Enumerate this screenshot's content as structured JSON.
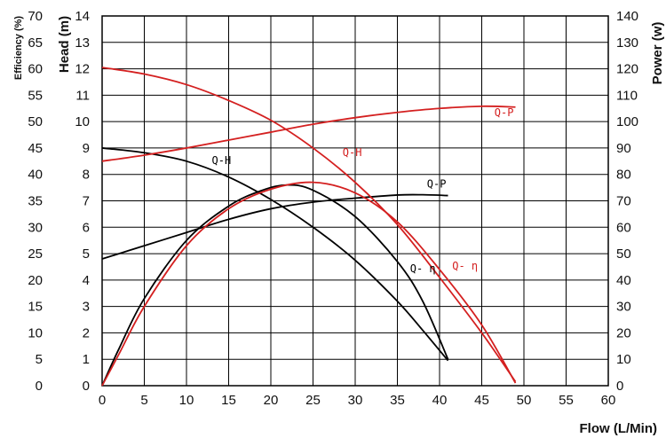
{
  "chart_data": {
    "type": "line",
    "grid": true,
    "x_axis": {
      "label": "Flow  (L/Min)",
      "ticks": [
        0,
        5,
        10,
        15,
        20,
        25,
        30,
        35,
        40,
        45,
        50,
        55,
        60
      ],
      "range": [
        0,
        60
      ]
    },
    "y_axes": {
      "efficiency": {
        "label": "Efficiency (%)",
        "ticks": [
          0,
          5,
          10,
          15,
          20,
          25,
          30,
          35,
          40,
          45,
          50,
          55,
          60,
          65,
          70
        ],
        "range": [
          0,
          70
        ]
      },
      "head": {
        "label": "Head (m)",
        "ticks": [
          0,
          1,
          2,
          3,
          4,
          5,
          6,
          7,
          8,
          9,
          10,
          11,
          12,
          13,
          14
        ],
        "range": [
          0,
          14
        ]
      },
      "power": {
        "label": "Power (w)",
        "ticks": [
          0,
          10,
          20,
          30,
          40,
          50,
          60,
          70,
          80,
          90,
          100,
          110,
          120,
          130,
          140
        ],
        "range": [
          0,
          140
        ]
      }
    },
    "colors": {
      "black": "#000000",
      "red": "#d42020",
      "grid": "#000000"
    },
    "series": [
      {
        "name": "Q-H",
        "color": "black",
        "axis": "head",
        "points": [
          [
            0,
            9.0
          ],
          [
            5,
            8.82
          ],
          [
            10,
            8.5
          ],
          [
            15,
            7.9
          ],
          [
            20,
            7.05
          ],
          [
            25,
            6.0
          ],
          [
            30,
            4.75
          ],
          [
            35,
            3.2
          ],
          [
            38,
            2.1
          ],
          [
            41,
            0.95
          ]
        ]
      },
      {
        "name": "Q-P",
        "color": "black",
        "axis": "power",
        "points": [
          [
            0,
            48
          ],
          [
            5,
            53
          ],
          [
            10,
            58
          ],
          [
            15,
            63
          ],
          [
            20,
            67
          ],
          [
            25,
            69.5
          ],
          [
            30,
            71
          ],
          [
            35,
            72.2
          ],
          [
            38,
            72.3
          ],
          [
            41,
            72
          ]
        ]
      },
      {
        "name": "Q- η",
        "color": "black",
        "axis": "efficiency",
        "points": [
          [
            0,
            0
          ],
          [
            2,
            7
          ],
          [
            5,
            16.5
          ],
          [
            10,
            27.5
          ],
          [
            15,
            34
          ],
          [
            19,
            37
          ],
          [
            22,
            38
          ],
          [
            25,
            37
          ],
          [
            30,
            32
          ],
          [
            35,
            23.5
          ],
          [
            38,
            16
          ],
          [
            41,
            5
          ]
        ]
      },
      {
        "name": "Q-H",
        "color": "red",
        "axis": "head",
        "points": [
          [
            0,
            12.05
          ],
          [
            5,
            11.8
          ],
          [
            10,
            11.4
          ],
          [
            15,
            10.8
          ],
          [
            20,
            10.05
          ],
          [
            25,
            9.0
          ],
          [
            30,
            7.7
          ],
          [
            35,
            6.1
          ],
          [
            40,
            4.1
          ],
          [
            45,
            2.0
          ],
          [
            49,
            0.15
          ]
        ]
      },
      {
        "name": "Q-P",
        "color": "red",
        "axis": "power",
        "points": [
          [
            0,
            85
          ],
          [
            5,
            87.3
          ],
          [
            10,
            90
          ],
          [
            15,
            93
          ],
          [
            20,
            96
          ],
          [
            25,
            99
          ],
          [
            30,
            101.5
          ],
          [
            35,
            103.5
          ],
          [
            40,
            105
          ],
          [
            45,
            105.8
          ],
          [
            49,
            105.5
          ]
        ]
      },
      {
        "name": "Q- η",
        "color": "red",
        "axis": "efficiency",
        "points": [
          [
            0,
            0
          ],
          [
            2,
            6
          ],
          [
            5,
            15
          ],
          [
            10,
            26.5
          ],
          [
            15,
            33.5
          ],
          [
            20,
            37.2
          ],
          [
            25,
            38.5
          ],
          [
            30,
            36.5
          ],
          [
            35,
            31
          ],
          [
            40,
            22
          ],
          [
            45,
            11.5
          ],
          [
            49,
            0.5
          ]
        ]
      }
    ],
    "labels": [
      {
        "text": "Q-H",
        "color": "black",
        "x": 13,
        "axis": "head",
        "y": 8.4
      },
      {
        "text": "Q-P",
        "color": "black",
        "x": 38.5,
        "axis": "power",
        "y": 75
      },
      {
        "text": "Q- η",
        "color": "black",
        "x": 36.5,
        "axis": "efficiency",
        "y": 21.5
      },
      {
        "text": "Q-H",
        "color": "red",
        "x": 28.5,
        "axis": "head",
        "y": 8.7
      },
      {
        "text": "Q-P",
        "color": "red",
        "x": 46.5,
        "axis": "power",
        "y": 102
      },
      {
        "text": "Q- η",
        "color": "red",
        "x": 41.5,
        "axis": "efficiency",
        "y": 22
      }
    ]
  }
}
